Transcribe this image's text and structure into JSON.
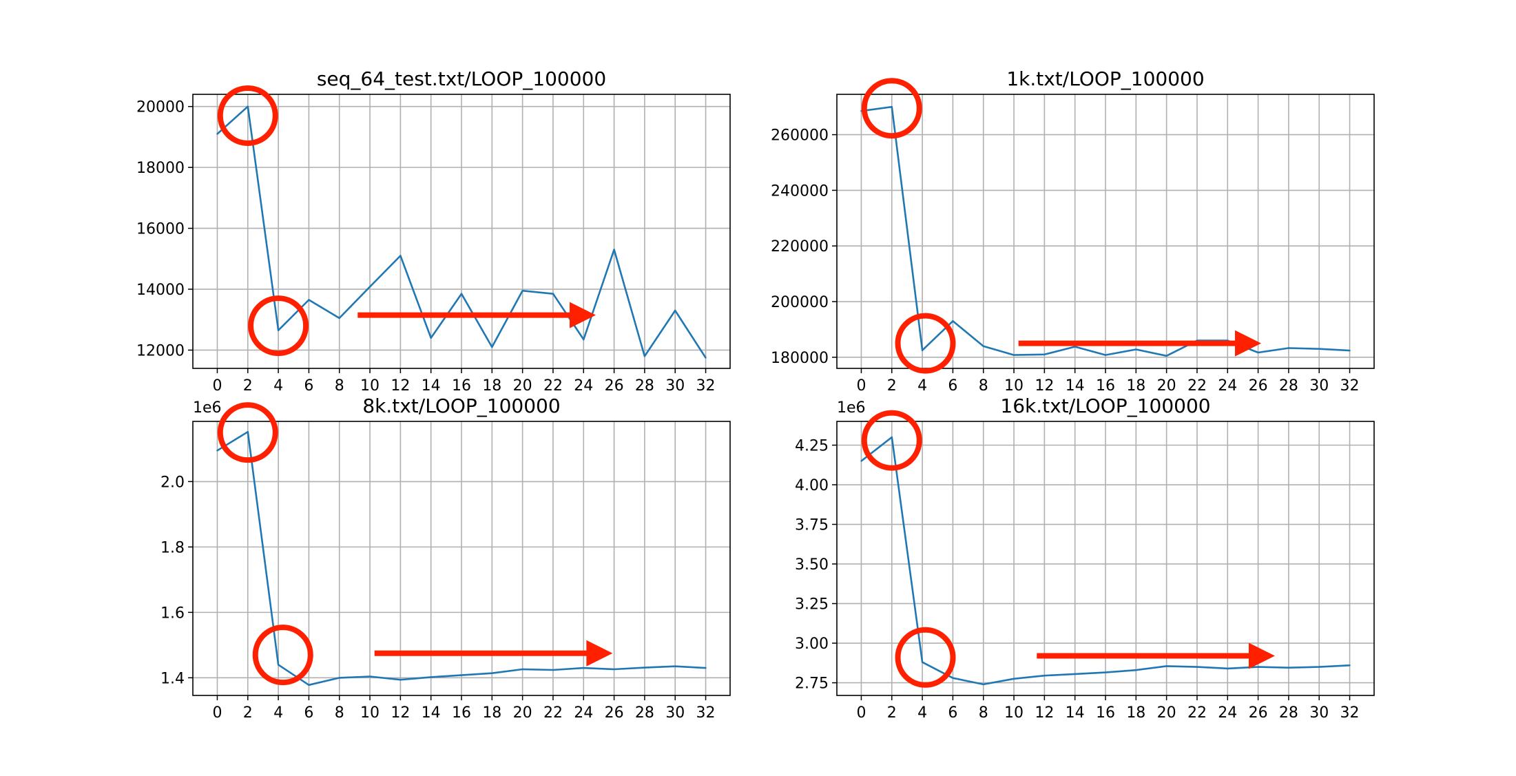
{
  "chart_data": [
    {
      "type": "line",
      "title": "seq_64_test.txt/LOOP_100000",
      "x": [
        0,
        2,
        4,
        6,
        8,
        10,
        12,
        14,
        16,
        18,
        20,
        22,
        24,
        26,
        28,
        30,
        32
      ],
      "series": [
        {
          "values": [
            19100,
            20000,
            12650,
            13650,
            13050,
            14080,
            15100,
            12400,
            13850,
            12100,
            13950,
            13850,
            12350,
            15300,
            11800,
            13300,
            11750
          ],
          "color": "#1f77b4"
        }
      ],
      "xlim": [
        -1.6,
        33.6
      ],
      "ylim": [
        11400,
        20400
      ],
      "xticks": [
        "0",
        "2",
        "4",
        "6",
        "8",
        "10",
        "12",
        "14",
        "16",
        "18",
        "20",
        "22",
        "24",
        "26",
        "28",
        "30",
        "32"
      ],
      "yticks": [
        "12000",
        "14000",
        "16000",
        "18000",
        "20000"
      ],
      "ytick_values": [
        12000,
        14000,
        16000,
        18000,
        20000
      ],
      "offset_label": "",
      "grid": true,
      "annotations": {
        "circles_at": [
          {
            "x": 2,
            "y": 19700
          },
          {
            "x": 4,
            "y": 12800
          }
        ],
        "arrow": {
          "from_x": 9.2,
          "to_x": 24.8,
          "y": 13150
        },
        "color": "#ff2000"
      }
    },
    {
      "type": "line",
      "title": "1k.txt/LOOP_100000",
      "x": [
        0,
        2,
        4,
        6,
        8,
        10,
        12,
        14,
        16,
        18,
        20,
        22,
        24,
        26,
        28,
        30,
        32
      ],
      "series": [
        {
          "values": [
            268500,
            270000,
            182500,
            193000,
            184000,
            180800,
            181000,
            183800,
            180800,
            182800,
            180500,
            186000,
            186000,
            181700,
            183300,
            183000,
            182400
          ],
          "color": "#1f77b4"
        }
      ],
      "xlim": [
        -1.6,
        33.6
      ],
      "ylim": [
        176000,
        274500
      ],
      "xticks": [
        "0",
        "2",
        "4",
        "6",
        "8",
        "10",
        "12",
        "14",
        "16",
        "18",
        "20",
        "22",
        "24",
        "26",
        "28",
        "30",
        "32"
      ],
      "yticks": [
        "180000",
        "200000",
        "220000",
        "240000",
        "260000"
      ],
      "ytick_values": [
        180000,
        200000,
        220000,
        240000,
        260000
      ],
      "offset_label": "",
      "grid": true,
      "annotations": {
        "circles_at": [
          {
            "x": 2,
            "y": 269500
          },
          {
            "x": 4.2,
            "y": 185000
          }
        ],
        "arrow": {
          "from_x": 10.3,
          "to_x": 26.2,
          "y": 185000
        },
        "color": "#ff2000"
      }
    },
    {
      "type": "line",
      "title": "8k.txt/LOOP_100000",
      "x": [
        0,
        2,
        4,
        6,
        8,
        10,
        12,
        14,
        16,
        18,
        20,
        22,
        24,
        26,
        28,
        30,
        32
      ],
      "series": [
        {
          "values": [
            2.095,
            2.152,
            1.44,
            1.378,
            1.4,
            1.404,
            1.394,
            1.402,
            1.408,
            1.414,
            1.426,
            1.424,
            1.43,
            1.426,
            1.431,
            1.435,
            1.43
          ],
          "color": "#1f77b4"
        }
      ],
      "xlim": [
        -1.6,
        33.6
      ],
      "ylim": [
        1.346,
        2.184
      ],
      "xticks": [
        "0",
        "2",
        "4",
        "6",
        "8",
        "10",
        "12",
        "14",
        "16",
        "18",
        "20",
        "22",
        "24",
        "26",
        "28",
        "30",
        "32"
      ],
      "yticks": [
        "1.4",
        "1.6",
        "1.8",
        "2.0"
      ],
      "ytick_values": [
        1.4,
        1.6,
        1.8,
        2.0
      ],
      "offset_label": "1e6",
      "grid": true,
      "annotations": {
        "circles_at": [
          {
            "x": 2,
            "y": 2.15
          },
          {
            "x": 4.3,
            "y": 1.47
          }
        ],
        "arrow": {
          "from_x": 10.3,
          "to_x": 25.9,
          "y": 1.475
        },
        "color": "#ff2000"
      }
    },
    {
      "type": "line",
      "title": "16k.txt/LOOP_100000",
      "x": [
        0,
        2,
        4,
        6,
        8,
        10,
        12,
        14,
        16,
        18,
        20,
        22,
        24,
        26,
        28,
        30,
        32
      ],
      "series": [
        {
          "values": [
            4.15,
            4.3,
            2.88,
            2.78,
            2.74,
            2.775,
            2.795,
            2.805,
            2.815,
            2.83,
            2.855,
            2.85,
            2.84,
            2.85,
            2.845,
            2.85,
            2.86
          ],
          "color": "#1f77b4"
        }
      ],
      "xlim": [
        -1.6,
        33.6
      ],
      "ylim": [
        2.67,
        4.4
      ],
      "xticks": [
        "0",
        "2",
        "4",
        "6",
        "8",
        "10",
        "12",
        "14",
        "16",
        "18",
        "20",
        "22",
        "24",
        "26",
        "28",
        "30",
        "32"
      ],
      "yticks": [
        "2.75",
        "3.00",
        "3.25",
        "3.50",
        "3.75",
        "4.00",
        "4.25"
      ],
      "ytick_values": [
        2.75,
        3.0,
        3.25,
        3.5,
        3.75,
        4.0,
        4.25
      ],
      "offset_label": "1e6",
      "grid": true,
      "annotations": {
        "circles_at": [
          {
            "x": 2,
            "y": 4.28
          },
          {
            "x": 4.2,
            "y": 2.91
          }
        ],
        "arrow": {
          "from_x": 11.5,
          "to_x": 27.1,
          "y": 2.92
        },
        "color": "#ff2000"
      }
    }
  ]
}
